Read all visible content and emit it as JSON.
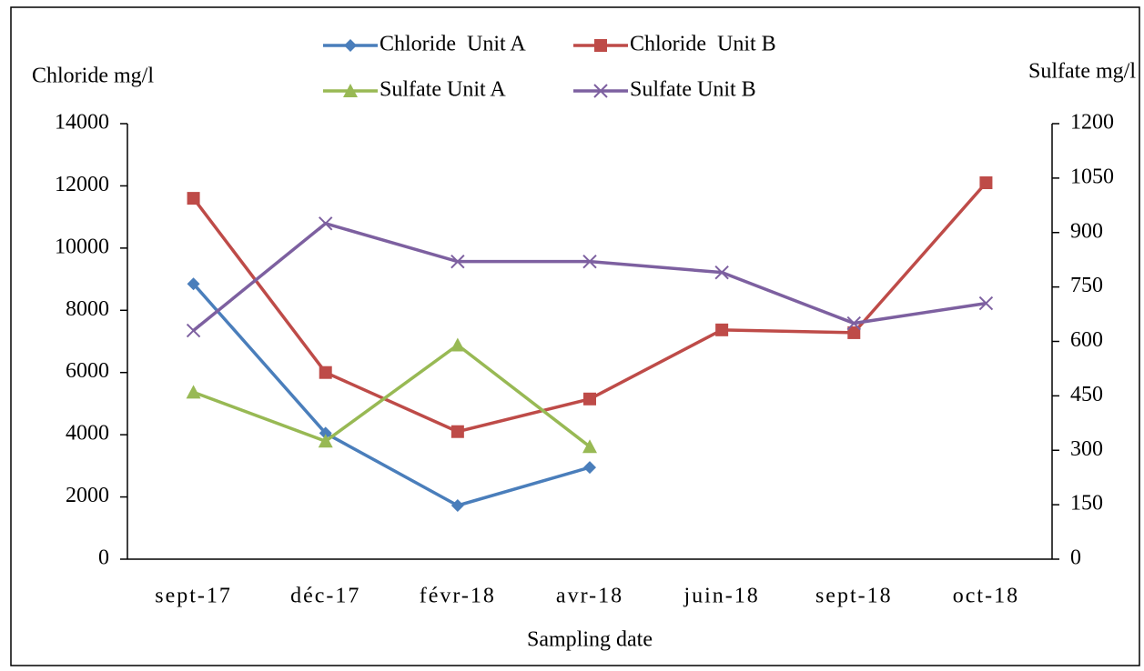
{
  "chart_data": {
    "type": "line",
    "y_label": "Chloride mg/l",
    "y2_label": "Sulfate mg/l",
    "x_label": "Sampling date",
    "categories": [
      "sept-17",
      "déc-17",
      "févr-18",
      "avr-18",
      "juin-18",
      "sept-18",
      "oct-18"
    ],
    "series": [
      {
        "name": "Chloride  Unit A",
        "color": "#4a7ebb",
        "marker": "diamond",
        "values": [
          8850,
          4050,
          1725,
          2950,
          null,
          null,
          null
        ]
      },
      {
        "name": "Chloride  Unit B",
        "color": "#be4b48",
        "marker": "square",
        "values": [
          11600,
          6000,
          4100,
          5150,
          7370,
          7280,
          12100
        ]
      },
      {
        "name": "Sulfate Unit A",
        "color": "#98b954",
        "marker": "triangle",
        "axis": "y2",
        "values": [
          460,
          325,
          590,
          310,
          null,
          null,
          null
        ]
      },
      {
        "name": "Sulfate Unit B",
        "color": "#7d60a0",
        "marker": "x",
        "axis": "y2",
        "values": [
          630,
          925,
          820,
          820,
          790,
          650,
          705
        ]
      }
    ],
    "ylim": [
      0,
      14000
    ],
    "yticks": [
      0,
      2000,
      4000,
      6000,
      8000,
      10000,
      12000,
      14000
    ],
    "y2lim": [
      0,
      1200
    ],
    "y2ticks": [
      0,
      150,
      300,
      450,
      600,
      750,
      900,
      1050,
      1200
    ],
    "legend": "top"
  }
}
